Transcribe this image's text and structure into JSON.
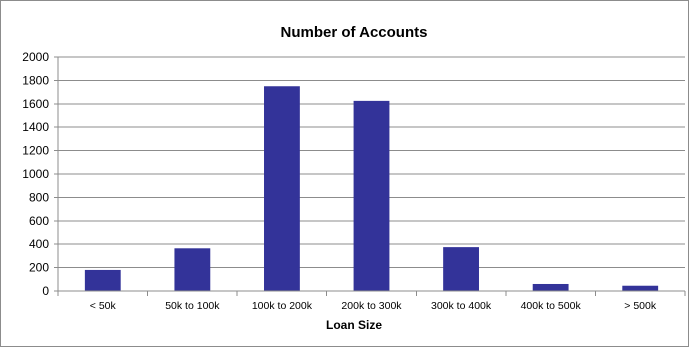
{
  "chart_data": {
    "type": "bar",
    "title": "Number of Accounts",
    "xlabel": "Loan Size",
    "ylabel": "",
    "categories": [
      "< 50k",
      "50k to 100k",
      "100k to 200k",
      "200k to 300k",
      "300k to 400k",
      "400k to 500k",
      "> 500k"
    ],
    "values": [
      180,
      365,
      1750,
      1625,
      375,
      60,
      45
    ],
    "ylim": [
      0,
      2000
    ],
    "yticks": [
      0,
      200,
      400,
      600,
      800,
      1000,
      1200,
      1400,
      1600,
      1800,
      2000
    ],
    "grid": true,
    "legend": "none",
    "bar_color": "#333399",
    "grid_color": "#8c8c8c"
  }
}
